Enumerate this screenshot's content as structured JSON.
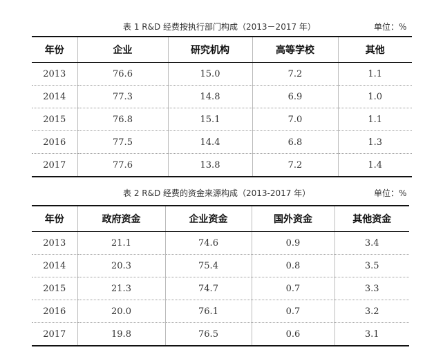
{
  "table1": {
    "caption": "表 1   R&D 经费按执行部门构成（2013－2017 年）",
    "unit": "单位：%",
    "headers": [
      "年份",
      "企业",
      "研究机构",
      "高等学校",
      "其他"
    ],
    "rows": [
      [
        "2013",
        "76.6",
        "15.0",
        "7.2",
        "1.1"
      ],
      [
        "2014",
        "77.3",
        "14.8",
        "6.9",
        "1.0"
      ],
      [
        "2015",
        "76.8",
        "15.1",
        "7.0",
        "1.1"
      ],
      [
        "2016",
        "77.5",
        "14.4",
        "6.8",
        "1.3"
      ],
      [
        "2017",
        "77.6",
        "13.8",
        "7.2",
        "1.4"
      ]
    ]
  },
  "table2": {
    "caption": "表 2   R&D 经费的资金来源构成（2013-2017 年）",
    "unit": "单位：%",
    "headers": [
      "年份",
      "政府资金",
      "企业资金",
      "国外资金",
      "其他资金"
    ],
    "rows": [
      [
        "2013",
        "21.1",
        "74.6",
        "0.9",
        "3.4"
      ],
      [
        "2014",
        "20.3",
        "75.4",
        "0.8",
        "3.5"
      ],
      [
        "2015",
        "21.3",
        "74.7",
        "0.7",
        "3.3"
      ],
      [
        "2016",
        "20.0",
        "76.1",
        "0.7",
        "3.2"
      ],
      [
        "2017",
        "19.8",
        "76.5",
        "0.6",
        "3.1"
      ]
    ]
  }
}
